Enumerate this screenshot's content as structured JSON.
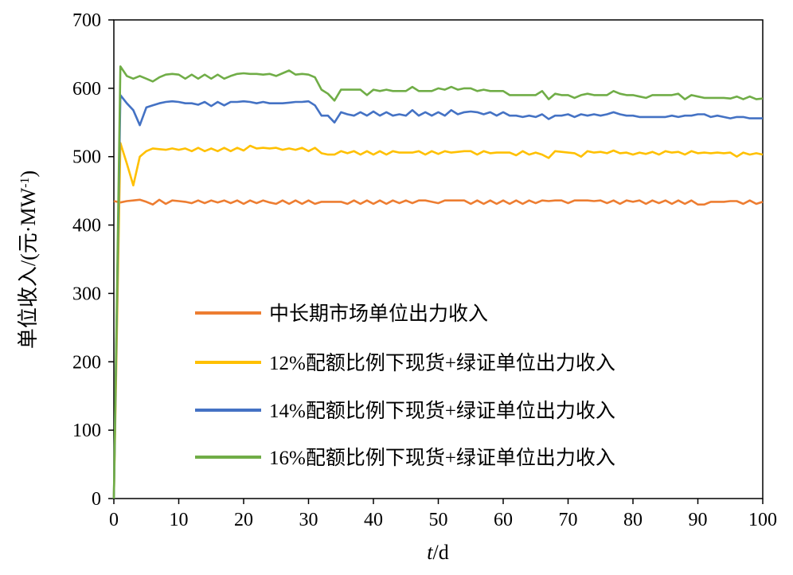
{
  "chart_data": {
    "type": "line",
    "title": "",
    "xlabel_var": "t",
    "xlabel_unit": "/d",
    "ylabel_main": "单位收入/(元·MW",
    "ylabel_sup": "-1",
    "ylabel_end": ")",
    "xlim": [
      0,
      100
    ],
    "ylim": [
      0,
      700
    ],
    "xticks": [
      0,
      10,
      20,
      30,
      40,
      50,
      60,
      70,
      80,
      90,
      100
    ],
    "yticks": [
      0,
      100,
      200,
      300,
      400,
      500,
      600,
      700
    ],
    "xtick_labels": [
      "0",
      "10",
      "20",
      "30",
      "40",
      "50",
      "60",
      "70",
      "80",
      "90",
      "100"
    ],
    "ytick_labels": [
      "0",
      "100",
      "200",
      "300",
      "400",
      "500",
      "600",
      "700"
    ],
    "legend_position": "bottom-center",
    "x": [
      0,
      1,
      2,
      3,
      4,
      5,
      6,
      7,
      8,
      9,
      10,
      11,
      12,
      13,
      14,
      15,
      16,
      17,
      18,
      19,
      20,
      21,
      22,
      23,
      24,
      25,
      26,
      27,
      28,
      29,
      30,
      31,
      32,
      33,
      34,
      35,
      36,
      37,
      38,
      39,
      40,
      41,
      42,
      43,
      44,
      45,
      46,
      47,
      48,
      49,
      50,
      51,
      52,
      53,
      54,
      55,
      56,
      57,
      58,
      59,
      60,
      61,
      62,
      63,
      64,
      65,
      66,
      67,
      68,
      69,
      70,
      71,
      72,
      73,
      74,
      75,
      76,
      77,
      78,
      79,
      80,
      81,
      82,
      83,
      84,
      85,
      86,
      87,
      88,
      89,
      90,
      91,
      92,
      93,
      94,
      95,
      96,
      97,
      98,
      99,
      100
    ],
    "series": [
      {
        "name": "中长期市场单位出力收入",
        "color": "#ED7D31",
        "values": [
          435,
          433,
          435,
          436,
          437,
          434,
          430,
          437,
          431,
          436,
          435,
          434,
          432,
          436,
          432,
          436,
          433,
          436,
          432,
          436,
          431,
          436,
          432,
          436,
          433,
          431,
          436,
          431,
          436,
          431,
          436,
          431,
          434,
          434,
          434,
          434,
          431,
          436,
          431,
          436,
          431,
          436,
          431,
          436,
          432,
          436,
          432,
          436,
          436,
          434,
          432,
          436,
          436,
          436,
          436,
          431,
          436,
          431,
          436,
          431,
          436,
          431,
          436,
          431,
          436,
          432,
          436,
          435,
          436,
          436,
          432,
          436,
          436,
          436,
          435,
          436,
          432,
          436,
          431,
          436,
          434,
          436,
          431,
          436,
          432,
          436,
          431,
          436,
          431,
          436,
          430,
          430,
          434,
          434,
          434,
          435,
          435,
          431,
          436,
          431,
          434
        ]
      },
      {
        "name": "12%配额比例下现货+绿证单位出力收入",
        "color": "#FFC000",
        "values": [
          0,
          520,
          490,
          458,
          500,
          508,
          512,
          511,
          510,
          512,
          510,
          512,
          508,
          513,
          508,
          512,
          508,
          513,
          508,
          513,
          509,
          516,
          512,
          513,
          512,
          513,
          510,
          512,
          510,
          513,
          508,
          513,
          505,
          503,
          503,
          508,
          505,
          508,
          503,
          508,
          503,
          508,
          503,
          508,
          506,
          506,
          506,
          508,
          503,
          508,
          504,
          508,
          506,
          507,
          508,
          508,
          503,
          508,
          505,
          506,
          506,
          506,
          502,
          508,
          503,
          506,
          503,
          498,
          508,
          507,
          506,
          505,
          500,
          508,
          506,
          507,
          505,
          509,
          505,
          506,
          503,
          506,
          504,
          507,
          503,
          508,
          506,
          507,
          503,
          508,
          505,
          506,
          505,
          506,
          505,
          506,
          500,
          506,
          503,
          505,
          503
        ]
      },
      {
        "name": "14%配额比例下现货+绿证单位出力收入",
        "color": "#4472C4",
        "values": [
          0,
          590,
          578,
          568,
          546,
          572,
          575,
          578,
          580,
          581,
          580,
          578,
          578,
          576,
          580,
          574,
          580,
          575,
          580,
          580,
          581,
          580,
          578,
          580,
          578,
          578,
          578,
          579,
          580,
          580,
          581,
          575,
          560,
          560,
          550,
          565,
          562,
          560,
          565,
          560,
          566,
          560,
          565,
          560,
          562,
          560,
          568,
          560,
          565,
          560,
          565,
          560,
          568,
          562,
          565,
          566,
          565,
          562,
          565,
          560,
          565,
          560,
          560,
          558,
          560,
          558,
          562,
          555,
          560,
          560,
          562,
          558,
          562,
          560,
          562,
          560,
          562,
          565,
          562,
          560,
          560,
          558,
          558,
          558,
          558,
          558,
          560,
          558,
          560,
          560,
          562,
          562,
          558,
          560,
          558,
          556,
          558,
          558,
          556,
          556,
          556
        ]
      },
      {
        "name": "16%配额比例下现货+绿证单位出力收入",
        "color": "#70AD47",
        "values": [
          0,
          632,
          618,
          614,
          618,
          614,
          610,
          616,
          620,
          621,
          620,
          614,
          620,
          614,
          620,
          614,
          620,
          614,
          618,
          621,
          622,
          621,
          621,
          620,
          621,
          618,
          622,
          626,
          620,
          621,
          620,
          616,
          598,
          592,
          582,
          598,
          598,
          598,
          598,
          590,
          598,
          596,
          598,
          596,
          596,
          596,
          602,
          596,
          596,
          596,
          600,
          598,
          602,
          598,
          600,
          600,
          596,
          598,
          596,
          596,
          596,
          590,
          590,
          590,
          590,
          590,
          596,
          584,
          592,
          590,
          590,
          586,
          590,
          592,
          590,
          590,
          590,
          596,
          592,
          590,
          590,
          588,
          586,
          590,
          590,
          590,
          590,
          592,
          584,
          590,
          588,
          586,
          586,
          586,
          586,
          585,
          588,
          584,
          588,
          584,
          585
        ]
      }
    ]
  }
}
